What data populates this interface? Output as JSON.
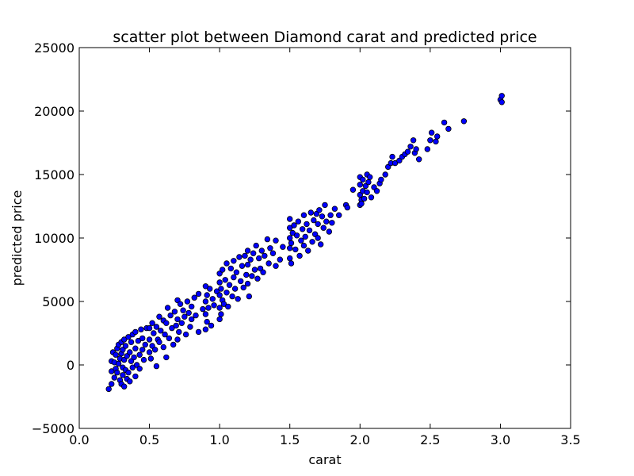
{
  "chart_data": {
    "type": "scatter",
    "title": "scatter plot between Diamond carat and predicted price",
    "xlabel": "carat",
    "ylabel": "predicted price",
    "xlim": [
      0.0,
      3.5
    ],
    "ylim": [
      -5000,
      25000
    ],
    "x_ticks": [
      0.0,
      0.5,
      1.0,
      1.5,
      2.0,
      2.5,
      3.0,
      3.5
    ],
    "x_tick_labels": [
      "0.0",
      "0.5",
      "1.0",
      "1.5",
      "2.0",
      "2.5",
      "3.0",
      "3.5"
    ],
    "y_ticks": [
      -5000,
      0,
      5000,
      10000,
      15000,
      20000,
      25000
    ],
    "y_tick_labels": [
      "−5000",
      "0",
      "5000",
      "10000",
      "15000",
      "20000",
      "25000"
    ],
    "grid": false,
    "marker_color": "#0000ff",
    "marker_edge_color": "#000000",
    "series": [
      {
        "points": [
          [
            0.21,
            -1900
          ],
          [
            0.23,
            -1500
          ],
          [
            0.23,
            -500
          ],
          [
            0.23,
            300
          ],
          [
            0.24,
            1000
          ],
          [
            0.25,
            -1000
          ],
          [
            0.25,
            200
          ],
          [
            0.26,
            -300
          ],
          [
            0.26,
            800
          ],
          [
            0.27,
            1300
          ],
          [
            0.27,
            -600
          ],
          [
            0.28,
            100
          ],
          [
            0.28,
            1600
          ],
          [
            0.29,
            -1200
          ],
          [
            0.29,
            500
          ],
          [
            0.3,
            -1500
          ],
          [
            0.3,
            900
          ],
          [
            0.3,
            1800
          ],
          [
            0.31,
            -800
          ],
          [
            0.31,
            -200
          ],
          [
            0.31,
            1200
          ],
          [
            0.32,
            -1700
          ],
          [
            0.32,
            400
          ],
          [
            0.32,
            2000
          ],
          [
            0.33,
            -400
          ],
          [
            0.33,
            1500
          ],
          [
            0.34,
            -1100
          ],
          [
            0.34,
            700
          ],
          [
            0.35,
            2200
          ],
          [
            0.35,
            -600
          ],
          [
            0.36,
            1000
          ],
          [
            0.36,
            -1300
          ],
          [
            0.37,
            300
          ],
          [
            0.37,
            1800
          ],
          [
            0.38,
            -200
          ],
          [
            0.38,
            2400
          ],
          [
            0.39,
            600
          ],
          [
            0.4,
            1300
          ],
          [
            0.4,
            -900
          ],
          [
            0.4,
            2600
          ],
          [
            0.41,
            0
          ],
          [
            0.42,
            1900
          ],
          [
            0.43,
            -300
          ],
          [
            0.43,
            800
          ],
          [
            0.44,
            2800
          ],
          [
            0.45,
            1200
          ],
          [
            0.45,
            2100
          ],
          [
            0.46,
            400
          ],
          [
            0.47,
            1600
          ],
          [
            0.48,
            2900
          ],
          [
            0.5,
            1000
          ],
          [
            0.5,
            2000
          ],
          [
            0.5,
            2900
          ],
          [
            0.51,
            500
          ],
          [
            0.52,
            3300
          ],
          [
            0.52,
            1500
          ],
          [
            0.53,
            2500
          ],
          [
            0.54,
            1200
          ],
          [
            0.55,
            3000
          ],
          [
            0.55,
            -100
          ],
          [
            0.56,
            2000
          ],
          [
            0.57,
            3800
          ],
          [
            0.57,
            1800
          ],
          [
            0.58,
            2700
          ],
          [
            0.6,
            3500
          ],
          [
            0.6,
            1400
          ],
          [
            0.61,
            2400
          ],
          [
            0.62,
            600
          ],
          [
            0.62,
            3300
          ],
          [
            0.63,
            4500
          ],
          [
            0.64,
            2100
          ],
          [
            0.65,
            3900
          ],
          [
            0.66,
            2900
          ],
          [
            0.67,
            1600
          ],
          [
            0.68,
            4200
          ],
          [
            0.69,
            3100
          ],
          [
            0.7,
            5100
          ],
          [
            0.7,
            2000
          ],
          [
            0.7,
            3600
          ],
          [
            0.71,
            2600
          ],
          [
            0.72,
            4800
          ],
          [
            0.73,
            3300
          ],
          [
            0.74,
            4300
          ],
          [
            0.75,
            3800
          ],
          [
            0.76,
            2400
          ],
          [
            0.77,
            5000
          ],
          [
            0.78,
            4100
          ],
          [
            0.79,
            3000
          ],
          [
            0.8,
            4600
          ],
          [
            0.8,
            3600
          ],
          [
            0.82,
            5300
          ],
          [
            0.83,
            3900
          ],
          [
            0.85,
            5600
          ],
          [
            0.85,
            2600
          ],
          [
            0.88,
            4400
          ],
          [
            0.9,
            2800
          ],
          [
            0.9,
            4000
          ],
          [
            0.9,
            5000
          ],
          [
            0.9,
            6200
          ],
          [
            0.91,
            3400
          ],
          [
            0.91,
            5500
          ],
          [
            0.92,
            4500
          ],
          [
            0.93,
            6000
          ],
          [
            0.94,
            3100
          ],
          [
            0.95,
            5200
          ],
          [
            0.96,
            4700
          ],
          [
            0.98,
            5800
          ],
          [
            1.0,
            3600
          ],
          [
            1.0,
            4500
          ],
          [
            1.0,
            5500
          ],
          [
            1.0,
            6500
          ],
          [
            1.0,
            7200
          ],
          [
            1.01,
            4000
          ],
          [
            1.01,
            6000
          ],
          [
            1.02,
            5100
          ],
          [
            1.02,
            7500
          ],
          [
            1.03,
            4800
          ],
          [
            1.04,
            6700
          ],
          [
            1.05,
            5700
          ],
          [
            1.05,
            8000
          ],
          [
            1.06,
            4600
          ],
          [
            1.07,
            6300
          ],
          [
            1.08,
            7600
          ],
          [
            1.09,
            5400
          ],
          [
            1.1,
            6900
          ],
          [
            1.1,
            8200
          ],
          [
            1.11,
            6000
          ],
          [
            1.12,
            7300
          ],
          [
            1.13,
            5200
          ],
          [
            1.14,
            8500
          ],
          [
            1.15,
            6600
          ],
          [
            1.16,
            7800
          ],
          [
            1.17,
            6100
          ],
          [
            1.18,
            8600
          ],
          [
            1.19,
            7100
          ],
          [
            1.2,
            6400
          ],
          [
            1.2,
            7900
          ],
          [
            1.2,
            9000
          ],
          [
            1.21,
            5400
          ],
          [
            1.22,
            8300
          ],
          [
            1.23,
            7000
          ],
          [
            1.24,
            8800
          ],
          [
            1.25,
            7500
          ],
          [
            1.26,
            9400
          ],
          [
            1.27,
            6800
          ],
          [
            1.28,
            8400
          ],
          [
            1.29,
            7600
          ],
          [
            1.3,
            9000
          ],
          [
            1.31,
            7300
          ],
          [
            1.32,
            8600
          ],
          [
            1.34,
            9900
          ],
          [
            1.35,
            8000
          ],
          [
            1.36,
            9200
          ],
          [
            1.38,
            8800
          ],
          [
            1.4,
            9800
          ],
          [
            1.4,
            7800
          ],
          [
            1.43,
            8300
          ],
          [
            1.45,
            9300
          ],
          [
            1.5,
            8400
          ],
          [
            1.5,
            9200
          ],
          [
            1.5,
            10000
          ],
          [
            1.5,
            10800
          ],
          [
            1.5,
            11500
          ],
          [
            1.51,
            9600
          ],
          [
            1.51,
            8000
          ],
          [
            1.52,
            10400
          ],
          [
            1.53,
            11000
          ],
          [
            1.54,
            9100
          ],
          [
            1.55,
            10200
          ],
          [
            1.56,
            11300
          ],
          [
            1.57,
            8600
          ],
          [
            1.58,
            9800
          ],
          [
            1.59,
            10700
          ],
          [
            1.6,
            11800
          ],
          [
            1.6,
            9400
          ],
          [
            1.61,
            10100
          ],
          [
            1.62,
            11100
          ],
          [
            1.63,
            9000
          ],
          [
            1.64,
            10600
          ],
          [
            1.65,
            12000
          ],
          [
            1.66,
            9700
          ],
          [
            1.67,
            11400
          ],
          [
            1.68,
            10300
          ],
          [
            1.69,
            11900
          ],
          [
            1.7,
            10000
          ],
          [
            1.7,
            11100
          ],
          [
            1.71,
            12200
          ],
          [
            1.72,
            9500
          ],
          [
            1.73,
            11700
          ],
          [
            1.74,
            10800
          ],
          [
            1.75,
            12600
          ],
          [
            1.76,
            11300
          ],
          [
            1.78,
            10500
          ],
          [
            1.79,
            11800
          ],
          [
            1.8,
            11200
          ],
          [
            1.82,
            12300
          ],
          [
            1.85,
            11800
          ],
          [
            1.9,
            12600
          ],
          [
            1.91,
            12400
          ],
          [
            1.95,
            13800
          ],
          [
            2.0,
            12600
          ],
          [
            2.0,
            13400
          ],
          [
            2.0,
            14200
          ],
          [
            2.0,
            14800
          ],
          [
            2.01,
            13000
          ],
          [
            2.01,
            12700
          ],
          [
            2.02,
            14600
          ],
          [
            2.02,
            13700
          ],
          [
            2.03,
            13100
          ],
          [
            2.04,
            14100
          ],
          [
            2.05,
            15000
          ],
          [
            2.05,
            13600
          ],
          [
            2.06,
            14400
          ],
          [
            2.07,
            14800
          ],
          [
            2.08,
            13200
          ],
          [
            2.1,
            14000
          ],
          [
            2.12,
            13700
          ],
          [
            2.14,
            14300
          ],
          [
            2.15,
            14600
          ],
          [
            2.18,
            15000
          ],
          [
            2.2,
            15600
          ],
          [
            2.22,
            15900
          ],
          [
            2.23,
            16400
          ],
          [
            2.25,
            15900
          ],
          [
            2.28,
            16100
          ],
          [
            2.3,
            16400
          ],
          [
            2.32,
            16600
          ],
          [
            2.34,
            16800
          ],
          [
            2.36,
            17200
          ],
          [
            2.38,
            17700
          ],
          [
            2.39,
            16700
          ],
          [
            2.4,
            17000
          ],
          [
            2.42,
            16200
          ],
          [
            2.48,
            17000
          ],
          [
            2.5,
            17700
          ],
          [
            2.51,
            18300
          ],
          [
            2.54,
            17600
          ],
          [
            2.55,
            18000
          ],
          [
            2.6,
            19100
          ],
          [
            2.63,
            18600
          ],
          [
            2.74,
            19200
          ],
          [
            3.0,
            20900
          ],
          [
            3.01,
            21200
          ],
          [
            3.01,
            20700
          ]
        ]
      }
    ]
  }
}
